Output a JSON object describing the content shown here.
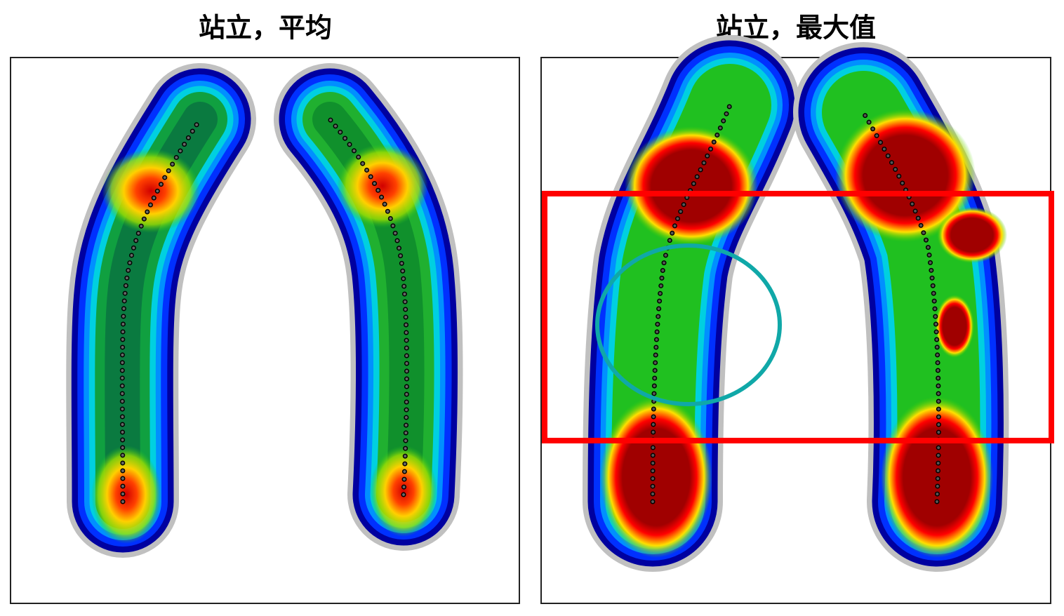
{
  "panels": [
    {
      "title": "站立，平均"
    },
    {
      "title": "站立，最大值"
    }
  ]
}
